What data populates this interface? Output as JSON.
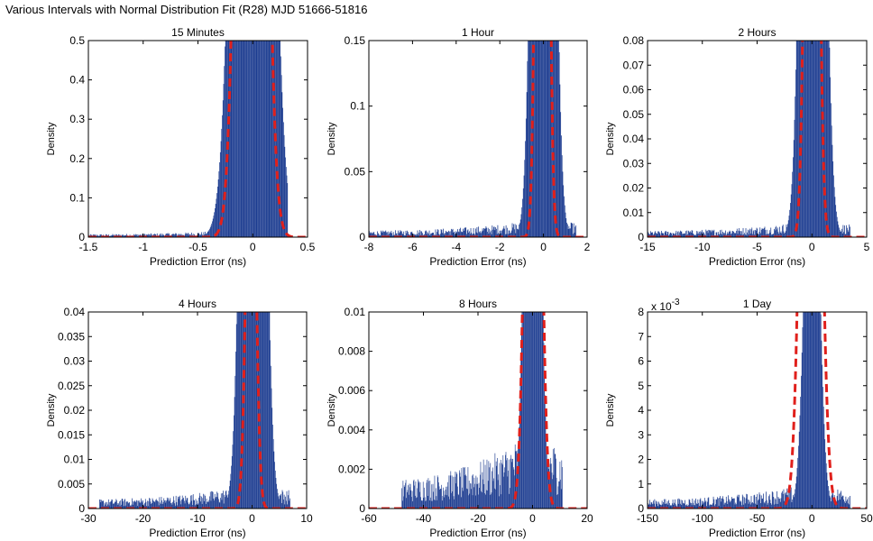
{
  "figure_title": "Various Intervals with Normal Distribution Fit (R28) MJD 51666-51816",
  "colors": {
    "histogram": "#1a3a8f",
    "fit": "#e0201c",
    "axis": "#000000"
  },
  "chart_data": [
    {
      "type": "bar",
      "title": "15 Minutes",
      "xlabel": "Prediction Error (ns)",
      "ylabel": "Density",
      "xlim": [
        -1.5,
        0.5
      ],
      "ylim": [
        0,
        0.5
      ],
      "xticks": [
        "-1.5",
        "-1",
        "-0.5",
        "0",
        "0.5"
      ],
      "yticks": [
        "0",
        "0.1",
        "0.2",
        "0.3",
        "0.4",
        "0.5"
      ],
      "exponent_label": "",
      "histogram": {
        "center": 0.0,
        "core_width": 0.12,
        "peak": 4.5,
        "tail_level": 0.006,
        "tail_min": -1.5,
        "tail_max": 0.32,
        "bins": 300
      },
      "series": [
        {
          "name": "",
          "type": "line",
          "mean": -0.01,
          "sigma": 0.09,
          "peak": 4.5
        }
      ]
    },
    {
      "type": "bar",
      "title": "1 Hour",
      "xlabel": "Prediction Error (ns)",
      "ylabel": "Density",
      "xlim": [
        -8,
        2
      ],
      "ylim": [
        0,
        0.15
      ],
      "xticks": [
        "-8",
        "-6",
        "-4",
        "-2",
        "0",
        "2"
      ],
      "yticks": [
        "0",
        "0.05",
        "0.1",
        "0.15"
      ],
      "exponent_label": "",
      "histogram": {
        "center": 0.0,
        "core_width": 0.35,
        "peak": 1.2,
        "tail_level": 0.004,
        "tail_min": -8,
        "tail_max": 1.5,
        "bins": 300
      },
      "series": [
        {
          "name": "",
          "type": "line",
          "mean": -0.05,
          "sigma": 0.2,
          "peak": 1.2
        }
      ]
    },
    {
      "type": "bar",
      "title": "2 Hours",
      "xlabel": "Prediction Error (ns)",
      "ylabel": "Density",
      "xlim": [
        -15,
        5
      ],
      "ylim": [
        0,
        0.08
      ],
      "xticks": [
        "-15",
        "-10",
        "-5",
        "0",
        "5"
      ],
      "yticks": [
        "0",
        "0.01",
        "0.02",
        "0.03",
        "0.04",
        "0.05",
        "0.06",
        "0.07",
        "0.08"
      ],
      "exponent_label": "",
      "histogram": {
        "center": 0.1,
        "core_width": 0.75,
        "peak": 0.6,
        "tail_level": 0.002,
        "tail_min": -15,
        "tail_max": 3.5,
        "bins": 300
      },
      "series": [
        {
          "name": "",
          "type": "line",
          "mean": 0.0,
          "sigma": 0.45,
          "peak": 0.5
        }
      ]
    },
    {
      "type": "bar",
      "title": "4 Hours",
      "xlabel": "Prediction Error (ns)",
      "ylabel": "Density",
      "xlim": [
        -30,
        10
      ],
      "ylim": [
        0,
        0.04
      ],
      "xticks": [
        "-30",
        "-20",
        "-10",
        "0",
        "10"
      ],
      "yticks": [
        "0",
        "0.005",
        "0.01",
        "0.015",
        "0.02",
        "0.025",
        "0.03",
        "0.035",
        "0.04"
      ],
      "exponent_label": "",
      "histogram": {
        "center": 0.2,
        "core_width": 1.5,
        "peak": 0.3,
        "tail_level": 0.0015,
        "tail_min": -28,
        "tail_max": 7,
        "bins": 300
      },
      "series": [
        {
          "name": "",
          "type": "line",
          "mean": -0.2,
          "sigma": 0.8,
          "peak": 0.1
        }
      ]
    },
    {
      "type": "bar",
      "title": "8 Hours",
      "xlabel": "Prediction Error (ns)",
      "ylabel": "Density",
      "xlim": [
        -60,
        20
      ],
      "ylim": [
        0,
        0.01
      ],
      "xticks": [
        "-60",
        "-40",
        "-20",
        "0",
        "20"
      ],
      "yticks": [
        "0",
        "0.002",
        "0.004",
        "0.006",
        "0.008",
        "0.01"
      ],
      "exponent_label": "",
      "histogram": {
        "center": 0.0,
        "core_width": 2.2,
        "peak": 0.05,
        "tail_level": 0.0012,
        "tail_min": -48,
        "tail_max": 11,
        "bins": 280
      },
      "series": [
        {
          "name": "",
          "type": "line",
          "mean": 0.2,
          "sigma": 2.2,
          "peak": 0.05
        }
      ]
    },
    {
      "type": "bar",
      "title": "1 Day",
      "xlabel": "Prediction Error (ns)",
      "ylabel": "Density",
      "xlim": [
        -150,
        50
      ],
      "ylim": [
        0,
        0.008
      ],
      "xticks": [
        "-150",
        "-100",
        "-50",
        "0",
        "50"
      ],
      "yticks": [
        "0",
        "1",
        "2",
        "3",
        "4",
        "5",
        "6",
        "7",
        "8"
      ],
      "exponent_label": "x 10",
      "exponent_power": "-3",
      "histogram": {
        "center": 0.0,
        "core_width": 6.0,
        "peak": 0.02,
        "tail_level": 0.0003,
        "tail_min": -150,
        "tail_max": 35,
        "bins": 300
      },
      "series": [
        {
          "name": "",
          "type": "line",
          "mean": -1.0,
          "sigma": 7.0,
          "peak": 0.04
        }
      ]
    }
  ]
}
